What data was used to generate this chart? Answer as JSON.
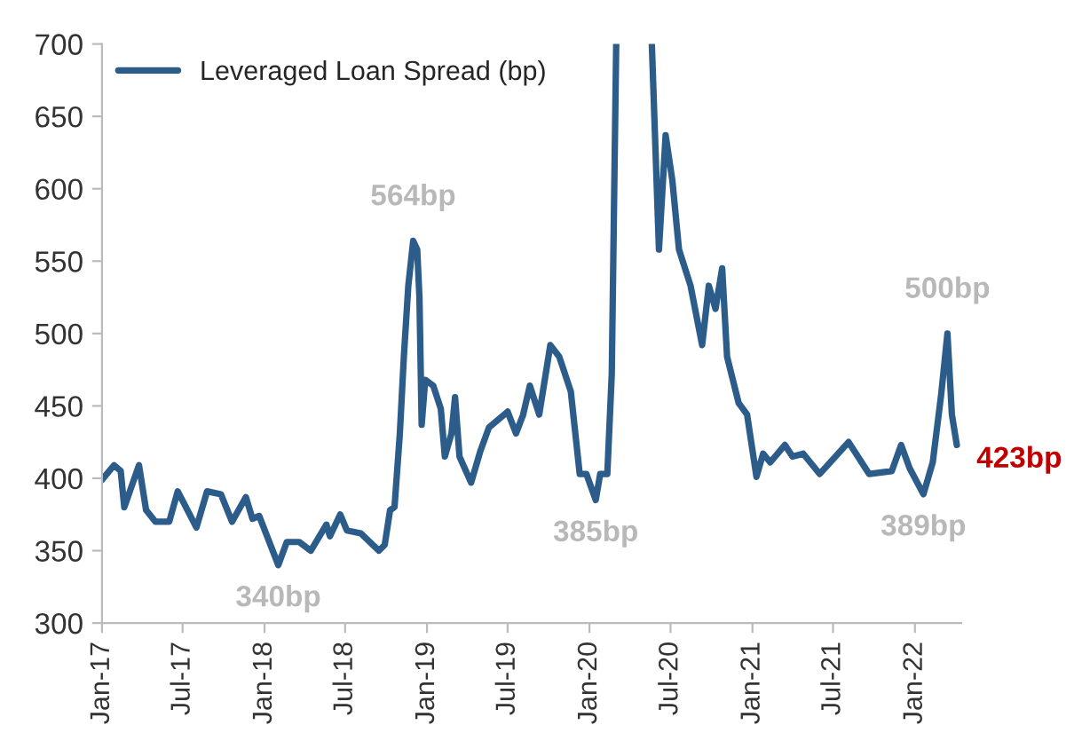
{
  "chart_data": {
    "type": "line",
    "series": [
      {
        "name": "Leveraged Loan Spread (bp)",
        "color": "#2b5c8a",
        "x": [
          "2017-01-01",
          "2017-01-28",
          "2017-02-12",
          "2017-02-20",
          "2017-03-25",
          "2017-04-10",
          "2017-05-01",
          "2017-06-01",
          "2017-06-20",
          "2017-08-01",
          "2017-08-25",
          "2017-09-25",
          "2017-10-20",
          "2017-11-20",
          "2017-12-05",
          "2017-12-20",
          "2018-02-01",
          "2018-02-20",
          "2018-03-20",
          "2018-04-15",
          "2018-05-20",
          "2018-05-28",
          "2018-06-20",
          "2018-07-05",
          "2018-08-05",
          "2018-09-15",
          "2018-09-28",
          "2018-10-10",
          "2018-10-20",
          "2018-11-01",
          "2018-11-10",
          "2018-11-20",
          "2018-12-01",
          "2018-12-10",
          "2018-12-15",
          "2018-12-20",
          "2018-12-28",
          "2019-01-15",
          "2019-02-01",
          "2019-02-10",
          "2019-02-25",
          "2019-03-05",
          "2019-03-15",
          "2019-04-10",
          "2019-05-01",
          "2019-05-20",
          "2019-07-01",
          "2019-07-20",
          "2019-08-05",
          "2019-08-20",
          "2019-09-10",
          "2019-10-05",
          "2019-10-25",
          "2019-11-20",
          "2019-12-10",
          "2019-12-25",
          "2020-01-15",
          "2020-01-25",
          "2020-02-10",
          "2020-02-20",
          "2020-03-01",
          "2020-04-15",
          "2020-05-20",
          "2020-06-05",
          "2020-06-20",
          "2020-07-05",
          "2020-07-20",
          "2020-08-15",
          "2020-09-10",
          "2020-09-25",
          "2020-10-10",
          "2020-10-25",
          "2020-11-05",
          "2020-12-01",
          "2020-12-20",
          "2021-01-10",
          "2021-01-25",
          "2021-02-10",
          "2021-03-15",
          "2021-04-01",
          "2021-04-25",
          "2021-06-01",
          "2021-08-05",
          "2021-09-20",
          "2021-11-10",
          "2021-12-01",
          "2021-12-20",
          "2022-01-20",
          "2022-02-10",
          "2022-03-01",
          "2022-03-15",
          "2022-03-25",
          "2022-04-05"
        ],
        "values": [
          399,
          409,
          405,
          380,
          409,
          378,
          370,
          370,
          391,
          366,
          391,
          389,
          370,
          387,
          372,
          374,
          340,
          356,
          356,
          350,
          368,
          360,
          375,
          364,
          362,
          350,
          354,
          378,
          380,
          431,
          484,
          533,
          564,
          558,
          525,
          437,
          468,
          464,
          448,
          415,
          431,
          456,
          415,
          397,
          419,
          435,
          446,
          431,
          444,
          464,
          444,
          492,
          484,
          460,
          403,
          403,
          385,
          403,
          403,
          472,
          700,
          null,
          700,
          558,
          637,
          606,
          558,
          533,
          492,
          533,
          517,
          545,
          484,
          452,
          444,
          401,
          417,
          411,
          423,
          415,
          417,
          403,
          425,
          403,
          405,
          423,
          407,
          389,
          411,
          458,
          500,
          444,
          423
        ]
      }
    ],
    "xlim": [
      "2017-01-01",
      "2022-04-15"
    ],
    "xticks": [
      {
        "value": "2017-01",
        "label": "Jan-17"
      },
      {
        "value": "2017-07",
        "label": "Jul-17"
      },
      {
        "value": "2018-01",
        "label": "Jan-18"
      },
      {
        "value": "2018-07",
        "label": "Jul-18"
      },
      {
        "value": "2019-01",
        "label": "Jan-19"
      },
      {
        "value": "2019-07",
        "label": "Jul-19"
      },
      {
        "value": "2020-01",
        "label": "Jan-20"
      },
      {
        "value": "2020-07",
        "label": "Jul-20"
      },
      {
        "value": "2021-01",
        "label": "Jan-21"
      },
      {
        "value": "2021-07",
        "label": "Jul-21"
      },
      {
        "value": "2022-01",
        "label": "Jan-22"
      }
    ],
    "ylim": [
      300,
      700
    ],
    "yticks": [
      300,
      350,
      400,
      450,
      500,
      550,
      600,
      650,
      700
    ],
    "annotations": [
      {
        "text": "340bp",
        "x": "2018-02-01",
        "y": 340
      },
      {
        "text": "564bp",
        "x": "2018-12-01",
        "y": 564
      },
      {
        "text": "385bp",
        "x": "2020-01-15",
        "y": 385
      },
      {
        "text": "500bp",
        "x": "2022-03-15",
        "y": 500
      },
      {
        "text": "389bp",
        "x": "2022-01-20",
        "y": 389
      },
      {
        "text": "423bp",
        "x": "2022-04-05",
        "y": 423
      }
    ],
    "grid": false,
    "legend": "top left",
    "marker": "none",
    "line_style": "solid"
  }
}
